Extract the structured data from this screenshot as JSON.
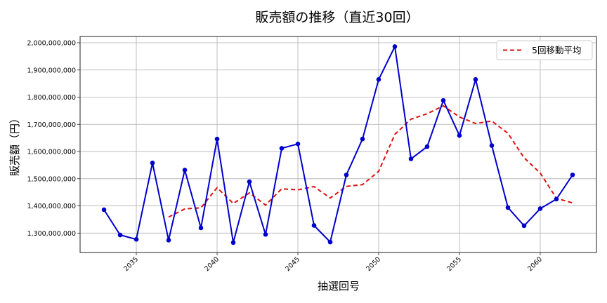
{
  "chart_data": {
    "type": "line",
    "title": "販売額の推移（直近30回）",
    "xlabel": "抽選回号",
    "ylabel": "販売額（円）",
    "x": [
      2033,
      2034,
      2035,
      2036,
      2037,
      2038,
      2039,
      2040,
      2041,
      2042,
      2043,
      2044,
      2045,
      2046,
      2047,
      2048,
      2049,
      2050,
      2051,
      2052,
      2053,
      2054,
      2055,
      2056,
      2057,
      2058,
      2059,
      2060,
      2061,
      2062
    ],
    "series": [
      {
        "name": "販売額",
        "color": "#0000cc",
        "style": "solid-with-markers",
        "values": [
          1386000000,
          1293000000,
          1277000000,
          1558000000,
          1274000000,
          1532000000,
          1319000000,
          1646000000,
          1265000000,
          1489000000,
          1295000000,
          1612000000,
          1628000000,
          1328000000,
          1267000000,
          1514000000,
          1646000000,
          1865000000,
          1986000000,
          1573000000,
          1618000000,
          1788000000,
          1659000000,
          1865000000,
          1622000000,
          1394000000,
          1327000000,
          1390000000,
          1425000000,
          1514000000
        ]
      },
      {
        "name": "5回移動平均",
        "color": "#dd1111",
        "style": "dashed",
        "values": [
          null,
          null,
          null,
          null,
          1359000000,
          1389000000,
          1393000000,
          1467000000,
          1409000000,
          1448000000,
          1403000000,
          1463000000,
          1459000000,
          1471000000,
          1429000000,
          1472000000,
          1478000000,
          1527000000,
          1663000000,
          1719000000,
          1739000000,
          1768000000,
          1727000000,
          1703000000,
          1712000000,
          1667000000,
          1577000000,
          1521000000,
          1428000000,
          1411000000
        ]
      }
    ],
    "xticks": [
      2035,
      2040,
      2045,
      2050,
      2055,
      2060
    ],
    "yticks": [
      1300000000,
      1400000000,
      1500000000,
      1600000000,
      1700000000,
      1800000000,
      1900000000,
      2000000000
    ],
    "ytick_labels": [
      "1,300,000,000",
      "1,400,000,000",
      "1,500,000,000",
      "1,600,000,000",
      "1,700,000,000",
      "1,800,000,000",
      "1,900,000,000",
      "2,000,000,000"
    ],
    "xlim": [
      2031.52,
      2063.48
    ],
    "ylim": [
      1228600000,
      2023200000
    ],
    "grid": true,
    "legend": {
      "position": "upper right",
      "entries": [
        "5回移動平均"
      ]
    }
  }
}
